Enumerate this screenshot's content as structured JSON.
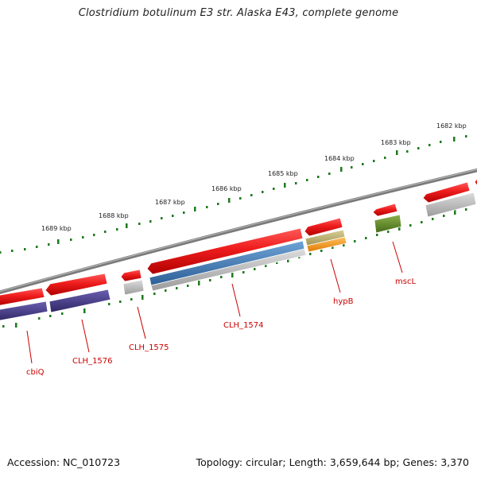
{
  "title": "Clostridium botulinum E3 str. Alaska E43, complete genome",
  "footer": {
    "accession": "Accession: NC_010723",
    "topology": "Topology: circular; Length: 3,659,644 bp; Genes: 3,370"
  },
  "scale_labels": [
    {
      "text": "1682 kbp"
    },
    {
      "text": "1683 kbp"
    },
    {
      "text": "1684 kbp"
    },
    {
      "text": "1685 kbp"
    },
    {
      "text": "1686 kbp"
    },
    {
      "text": "1687 kbp"
    },
    {
      "text": "1688 kbp"
    },
    {
      "text": "1689 kbp"
    }
  ],
  "gene_labels": [
    {
      "text": "cbiQ"
    },
    {
      "text": "CLH_1576"
    },
    {
      "text": "CLH_1575"
    },
    {
      "text": "CLH_1574"
    },
    {
      "text": "hypB"
    },
    {
      "text": "mscL"
    }
  ],
  "colors": {
    "gene_arrow": "#e8141c",
    "label_red": "#cc0000",
    "tick_green": "#1e7a1e",
    "backbone": "#808080",
    "purple": "#4a3f8a",
    "steel_blue": "#3f78b0",
    "olive": "#b8ad6a",
    "orange": "#f59a1e",
    "green": "#5e8a28",
    "grey": "#b4b4b4"
  }
}
